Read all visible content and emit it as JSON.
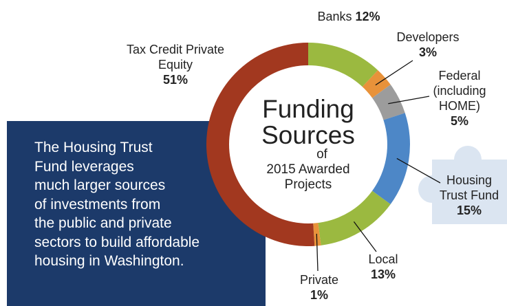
{
  "chart_data": {
    "type": "donut",
    "title": [
      "Funding",
      "Sources"
    ],
    "subtitle": [
      "of",
      "2015 Awarded",
      "Projects"
    ],
    "categories": [
      "Banks",
      "Developers",
      "Federal (including HOME)",
      "Housing Trust Fund",
      "Local",
      "Private",
      "Tax Credit Private Equity"
    ],
    "values": [
      12,
      3,
      5,
      15,
      13,
      1,
      51
    ],
    "value_labels": [
      "12%",
      "3%",
      "5%",
      "15%",
      "13%",
      "1%",
      "51%"
    ],
    "colors": [
      "#9bb940",
      "#e8923a",
      "#9c9c9c",
      "#4d87c7",
      "#9bb940",
      "#e8923a",
      "#a2381f"
    ],
    "note": [
      "The Housing Trust",
      "Fund leverages",
      "much larger sources",
      "of investments from",
      "the public and private",
      "sectors to build affordable",
      "housing in Washington."
    ]
  }
}
